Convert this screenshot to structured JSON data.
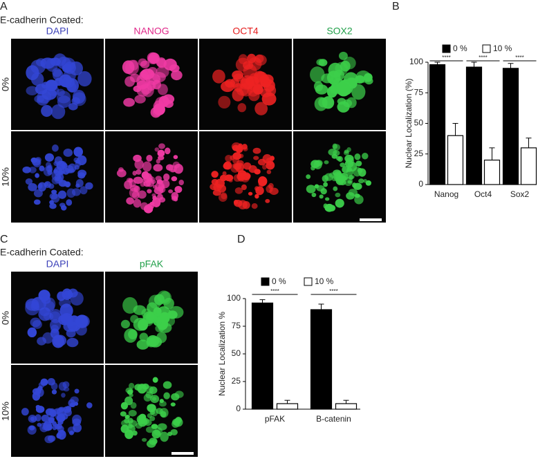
{
  "figure": {
    "panel_a": {
      "label": "A",
      "subtitle": "E-cadherin Coated:",
      "columns": [
        "DAPI",
        "NANOG",
        "OCT4",
        "SOX2"
      ],
      "rows": [
        "0%",
        "10%"
      ]
    },
    "panel_b": {
      "label": "B"
    },
    "panel_c": {
      "label": "C",
      "subtitle": "E-cadherin Coated:",
      "columns": [
        "DAPI",
        "pFAK"
      ],
      "rows": [
        "0%",
        "10%"
      ]
    },
    "panel_d": {
      "label": "D"
    }
  },
  "chart_data": [
    {
      "type": "bar",
      "ylabel": "Nuclear Localization (%)",
      "categories": [
        "Nanog",
        "Oct4",
        "Sox2"
      ],
      "series": [
        {
          "name": "0 %",
          "color": "#000000",
          "values": [
            98,
            96,
            95
          ],
          "errors": [
            2,
            4,
            4
          ]
        },
        {
          "name": "10 %",
          "color": "#ffffff",
          "values": [
            40,
            20,
            30
          ],
          "errors": [
            10,
            10,
            8
          ]
        }
      ],
      "annotations": [
        "****",
        "****",
        "****"
      ],
      "ylim": [
        0,
        100
      ],
      "yticks": [
        0,
        25,
        50,
        75,
        100
      ]
    },
    {
      "type": "bar",
      "ylabel": "Nuclear Localization %",
      "categories": [
        "pFAK",
        "B-catenin"
      ],
      "series": [
        {
          "name": "0 %",
          "color": "#000000",
          "values": [
            96,
            90
          ],
          "errors": [
            3,
            5
          ]
        },
        {
          "name": "10 %",
          "color": "#ffffff",
          "values": [
            5,
            5
          ],
          "errors": [
            3,
            3
          ]
        }
      ],
      "annotations": [
        "****",
        "****"
      ],
      "ylim": [
        0,
        100
      ],
      "yticks": [
        0,
        25,
        50,
        75,
        100
      ]
    }
  ]
}
